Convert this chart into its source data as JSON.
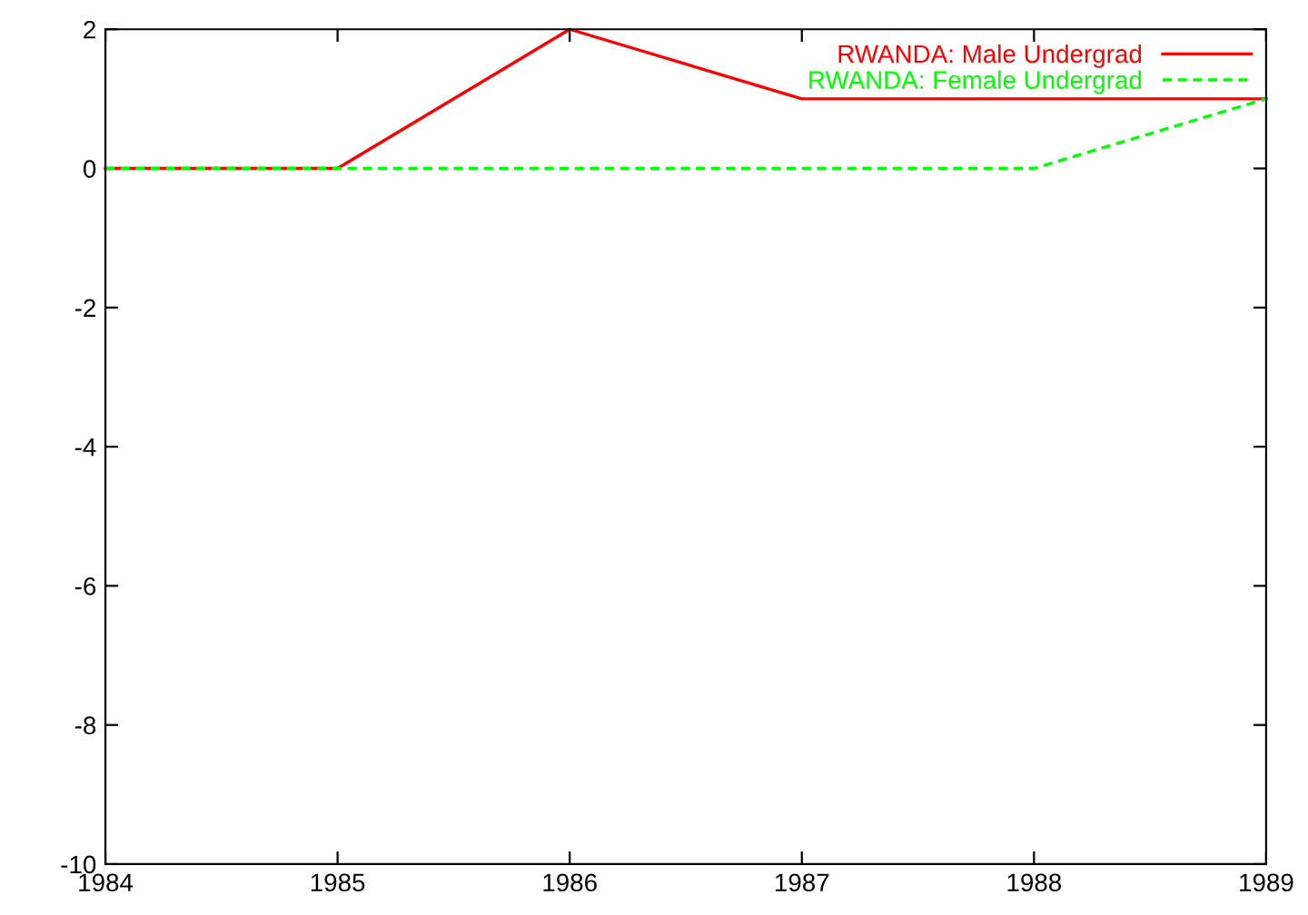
{
  "chart_data": {
    "type": "line",
    "x": [
      1984,
      1985,
      1986,
      1987,
      1988,
      1989
    ],
    "series": [
      {
        "name": "RWANDA: Male Undergrad",
        "color": "#ff0000",
        "line_style": "solid",
        "values": [
          0,
          0,
          2,
          1,
          1,
          1
        ]
      },
      {
        "name": "RWANDA: Female Undergrad",
        "color": "#00ff00",
        "line_style": "dashed",
        "values": [
          0,
          0,
          0,
          0,
          0,
          1
        ]
      }
    ],
    "xlim": [
      1984,
      1989
    ],
    "xticks": [
      1984,
      1985,
      1986,
      1987,
      1988,
      1989
    ],
    "ylim": [
      -10,
      2
    ],
    "yticks": [
      -10,
      -8,
      -6,
      -4,
      -2,
      0,
      2
    ],
    "grid": false,
    "legend": "top right",
    "marker": "none"
  }
}
